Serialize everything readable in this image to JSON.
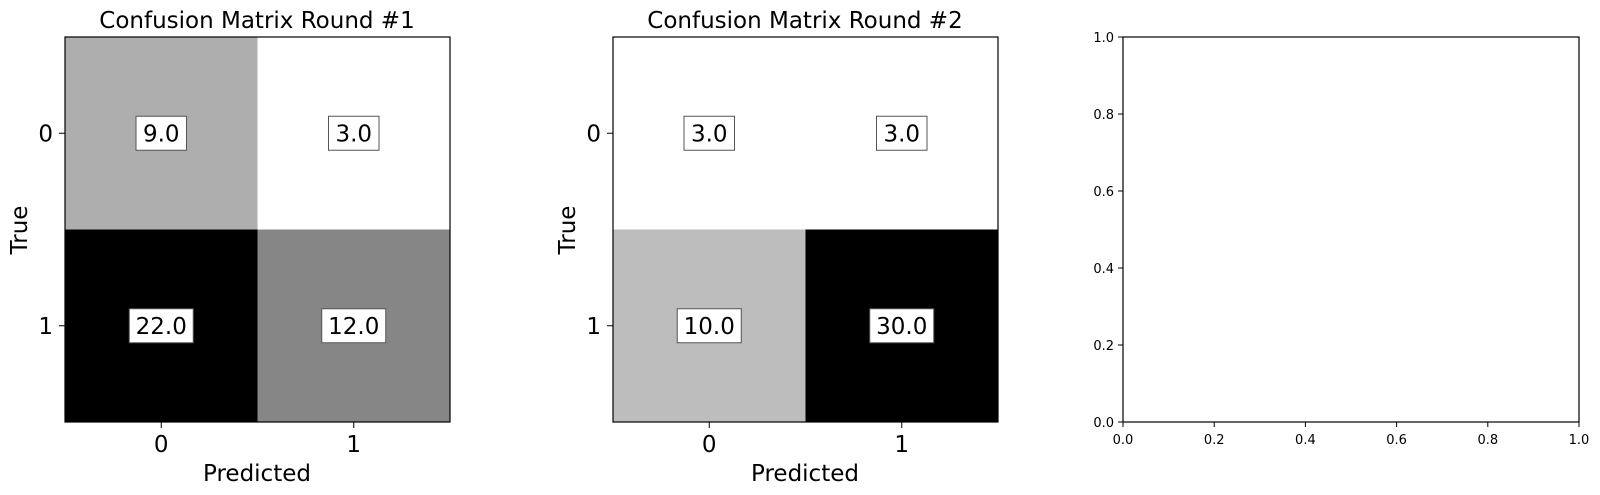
{
  "chart_data": [
    {
      "type": "heatmap",
      "title": "Confusion Matrix Round #1",
      "xlabel": "Predicted",
      "ylabel": "True",
      "x_categories": [
        "0",
        "1"
      ],
      "y_categories": [
        "0",
        "1"
      ],
      "values": [
        [
          9.0,
          3.0
        ],
        [
          22.0,
          12.0
        ]
      ],
      "labels": [
        [
          "9.0",
          "3.0"
        ],
        [
          "22.0",
          "12.0"
        ]
      ],
      "colormap": "Greys"
    },
    {
      "type": "heatmap",
      "title": "Confusion Matrix Round #2",
      "xlabel": "Predicted",
      "ylabel": "True",
      "x_categories": [
        "0",
        "1"
      ],
      "y_categories": [
        "0",
        "1"
      ],
      "values": [
        [
          3.0,
          3.0
        ],
        [
          10.0,
          30.0
        ]
      ],
      "labels": [
        [
          "3.0",
          "3.0"
        ],
        [
          "10.0",
          "30.0"
        ]
      ],
      "colormap": "Greys"
    },
    {
      "type": "empty",
      "xlim": [
        0,
        1
      ],
      "ylim": [
        0,
        1
      ],
      "xticks": [
        "0.0",
        "0.2",
        "0.4",
        "0.6",
        "0.8",
        "1.0"
      ],
      "yticks": [
        "0.0",
        "0.2",
        "0.4",
        "0.6",
        "0.8",
        "1.0"
      ]
    }
  ]
}
